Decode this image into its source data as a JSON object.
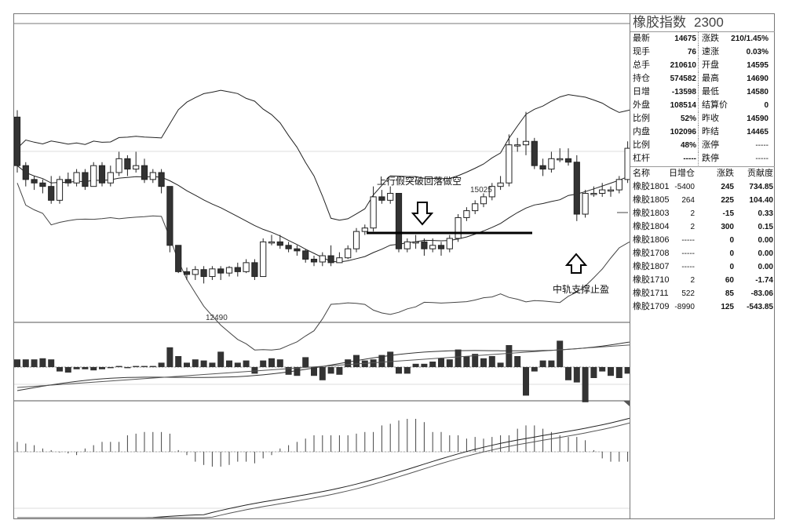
{
  "header": {
    "name": "橡胶指数",
    "code": "2300"
  },
  "quote": {
    "rows": [
      {
        "l": "最新",
        "v": "14675",
        "r": "涨跌",
        "v2": "210/1.45%",
        "b2": false
      },
      {
        "l": "现手",
        "v": "76",
        "r": "速涨",
        "v2": "0.03%",
        "b2": false
      },
      {
        "l": "总手",
        "v": "210610",
        "r": "开盘",
        "v2": "14595",
        "b2": false
      },
      {
        "l": "持仓",
        "v": "574582",
        "r": "最高",
        "v2": "14690",
        "b2": false
      },
      {
        "l": "日增",
        "v": "-13598",
        "r": "最低",
        "v2": "14580",
        "b2": false
      },
      {
        "l": "外盘",
        "v": "108514",
        "r": "结算价",
        "v2": "0",
        "b2": false
      },
      {
        "l": "比例",
        "v": "52%",
        "r": "昨收",
        "v2": "14590",
        "b2": true
      },
      {
        "l": "内盘",
        "v": "102096",
        "r": "昨结",
        "v2": "14465",
        "b2": true
      },
      {
        "l": "比例",
        "v": "48%",
        "r": "涨停",
        "v2": "-----",
        "b2": false
      },
      {
        "l": "杠杆",
        "v": "-----",
        "r": "跌停",
        "v2": "-----",
        "b2": false
      }
    ]
  },
  "contracts": {
    "headers": [
      "名称",
      "日增仓",
      "涨跌",
      "贡献度"
    ],
    "rows": [
      [
        "橡胶1801",
        "-5400",
        "245",
        "734.85"
      ],
      [
        "橡胶1805",
        "264",
        "225",
        "104.40"
      ],
      [
        "橡胶1803",
        "2",
        "-15",
        "0.33"
      ],
      [
        "橡胶1804",
        "2",
        "300",
        "0.15"
      ],
      [
        "橡胶1806",
        "-----",
        "0",
        "0.00"
      ],
      [
        "橡胶1708",
        "-----",
        "0",
        "0.00"
      ],
      [
        "橡胶1807",
        "-----",
        "0",
        "0.00"
      ],
      [
        "橡胶1710",
        "2",
        "60",
        "-1.74"
      ],
      [
        "橡胶1711",
        "522",
        "85",
        "-83.06"
      ],
      [
        "橡胶1709",
        "-8990",
        "125",
        "-543.85"
      ]
    ]
  },
  "annotations": {
    "top": "上行假突破回落做空",
    "bottom": "中轨支撑止盈",
    "high_label": "15025",
    "low_label": "12490"
  },
  "chart_data": {
    "type": "candlestick",
    "high_mark": 15025,
    "low_mark": 12490,
    "candles": [
      [
        14950,
        14250,
        15050,
        14150
      ],
      [
        14250,
        14050,
        14300,
        13950
      ],
      [
        14050,
        14000,
        14100,
        13900
      ],
      [
        14000,
        13950,
        14050,
        13850
      ],
      [
        13950,
        13750,
        14100,
        13700
      ],
      [
        13750,
        14050,
        14100,
        13700
      ],
      [
        14050,
        14000,
        14150,
        13950
      ],
      [
        14000,
        14150,
        14200,
        13950
      ],
      [
        14150,
        13950,
        14200,
        13900
      ],
      [
        13950,
        14250,
        14300,
        13950
      ],
      [
        14250,
        14000,
        14300,
        13950
      ],
      [
        14000,
        14150,
        14250,
        13950
      ],
      [
        14150,
        14350,
        14450,
        14100
      ],
      [
        14350,
        14200,
        14400,
        14100
      ],
      [
        14200,
        14250,
        14450,
        14150
      ],
      [
        14250,
        14050,
        14350,
        14000
      ],
      [
        14050,
        14150,
        14200,
        14000
      ],
      [
        14150,
        13950,
        14200,
        13850
      ],
      [
        13950,
        13100,
        13950,
        13000
      ],
      [
        13100,
        12720,
        13100,
        12700
      ],
      [
        12720,
        12680,
        12780,
        12600
      ],
      [
        12680,
        12750,
        12800,
        12600
      ],
      [
        12750,
        12650,
        12800,
        12550
      ],
      [
        12650,
        12760,
        12800,
        12600
      ],
      [
        12760,
        12700,
        12800,
        12600
      ],
      [
        12700,
        12780,
        12800,
        12650
      ],
      [
        12780,
        12720,
        12850,
        12650
      ],
      [
        12720,
        12850,
        12900,
        12700
      ],
      [
        12850,
        12650,
        12900,
        12600
      ],
      [
        12650,
        13150,
        13200,
        12650
      ],
      [
        13150,
        13150,
        13250,
        13100
      ],
      [
        13150,
        13100,
        13250,
        13050
      ],
      [
        13100,
        13050,
        13150,
        13000
      ],
      [
        13050,
        13020,
        13100,
        12950
      ],
      [
        13020,
        12900,
        13050,
        12850
      ],
      [
        12900,
        12860,
        12950,
        12800
      ],
      [
        12860,
        12950,
        13000,
        12800
      ],
      [
        12950,
        12850,
        13100,
        12800
      ],
      [
        12850,
        12920,
        13000,
        12850
      ],
      [
        12920,
        13050,
        13100,
        12900
      ],
      [
        13050,
        13300,
        13350,
        13000
      ],
      [
        13300,
        13350,
        13400,
        13250
      ],
      [
        13350,
        13800,
        13950,
        13300
      ],
      [
        13800,
        13750,
        13900,
        13700
      ],
      [
        13750,
        13850,
        13950,
        13700
      ],
      [
        13850,
        13050,
        13850,
        13000
      ],
      [
        13050,
        13150,
        13200,
        13000
      ],
      [
        13150,
        13150,
        13250,
        13050
      ],
      [
        13150,
        13050,
        13200,
        12950
      ],
      [
        13050,
        13100,
        13200,
        13000
      ],
      [
        13100,
        13050,
        13150,
        12950
      ],
      [
        13050,
        13200,
        13250,
        13000
      ],
      [
        13200,
        13500,
        13550,
        13150
      ],
      [
        13500,
        13600,
        13650,
        13450
      ],
      [
        13600,
        13700,
        13750,
        13550
      ],
      [
        13700,
        13800,
        13850,
        13650
      ],
      [
        13800,
        13950,
        14000,
        13750
      ],
      [
        13950,
        14000,
        14100,
        13900
      ],
      [
        14000,
        14550,
        14700,
        13950
      ],
      [
        14550,
        14550,
        14650,
        14450
      ],
      [
        14550,
        14600,
        15025,
        14400
      ],
      [
        14600,
        14250,
        14650,
        14200
      ],
      [
        14250,
        14200,
        14350,
        14100
      ],
      [
        14200,
        14350,
        14450,
        14150
      ],
      [
        14350,
        14350,
        14500,
        14300
      ],
      [
        14350,
        14300,
        14500,
        14250
      ],
      [
        14300,
        13550,
        14400,
        13450
      ],
      [
        13550,
        13850,
        13900,
        13500
      ],
      [
        13850,
        13850,
        13950,
        13800
      ],
      [
        13850,
        13900,
        14000,
        13800
      ],
      [
        13900,
        13900,
        13950,
        13800
      ],
      [
        13900,
        14050,
        14100,
        13850
      ],
      [
        14050,
        14500,
        14600,
        14000
      ],
      [
        14500,
        14550,
        14600,
        14450
      ]
    ],
    "volume": [
      0.35,
      0.35,
      0.35,
      0.4,
      0.35,
      -0.2,
      -0.25,
      -0.1,
      -0.1,
      -0.15,
      -0.1,
      -0.05,
      0.05,
      -0.05,
      0.05,
      0.05,
      0.05,
      0.2,
      0.9,
      0.5,
      0.2,
      0.35,
      0.3,
      0.2,
      0.7,
      0.3,
      0.2,
      0.3,
      -0.3,
      0.3,
      0.4,
      0.35,
      -0.35,
      -0.4,
      0.45,
      -0.4,
      -0.6,
      -0.3,
      -0.35,
      0.35,
      0.55,
      0.3,
      0.35,
      0.55,
      0.7,
      -0.3,
      -0.3,
      0.15,
      0.15,
      0.25,
      0.4,
      0.35,
      0.8,
      0.5,
      0.6,
      0.4,
      0.5,
      0.2,
      1.0,
      0.5,
      -1.3,
      -0.2,
      0.3,
      0.3,
      1.2,
      -0.6,
      -0.7,
      -1.6,
      -0.5,
      -0.2,
      -0.4,
      -0.5,
      -0.3,
      -0.4
    ],
    "macd_hist": [
      0.3,
      0.25,
      0.2,
      0.1,
      0.05,
      -0.02,
      -0.05,
      -0.1,
      0.1,
      0.2,
      0.3,
      0.3,
      0.3,
      0.5,
      0.55,
      0.6,
      0.6,
      0.6,
      0.55,
      0.05,
      -0.1,
      -0.3,
      -0.4,
      -0.45,
      -0.45,
      -0.4,
      -0.3,
      -0.3,
      -0.35,
      -0.2,
      -0.1,
      0.1,
      0.2,
      0.3,
      0.4,
      0.5,
      0.5,
      0.5,
      0.5,
      0.5,
      0.55,
      0.6,
      0.6,
      0.8,
      0.85,
      0.95,
      1.0,
      1.0,
      0.9,
      0.6,
      0.6,
      0.5,
      0.5,
      0.4,
      0.45,
      0.4,
      0.45,
      0.5,
      0.5,
      0.7,
      0.8,
      0.8,
      0.7,
      0.6,
      0.5,
      0.45,
      0.45,
      0.35,
      0.05,
      -0.2,
      -0.3,
      -0.3,
      -0.3,
      -0.2
    ]
  }
}
